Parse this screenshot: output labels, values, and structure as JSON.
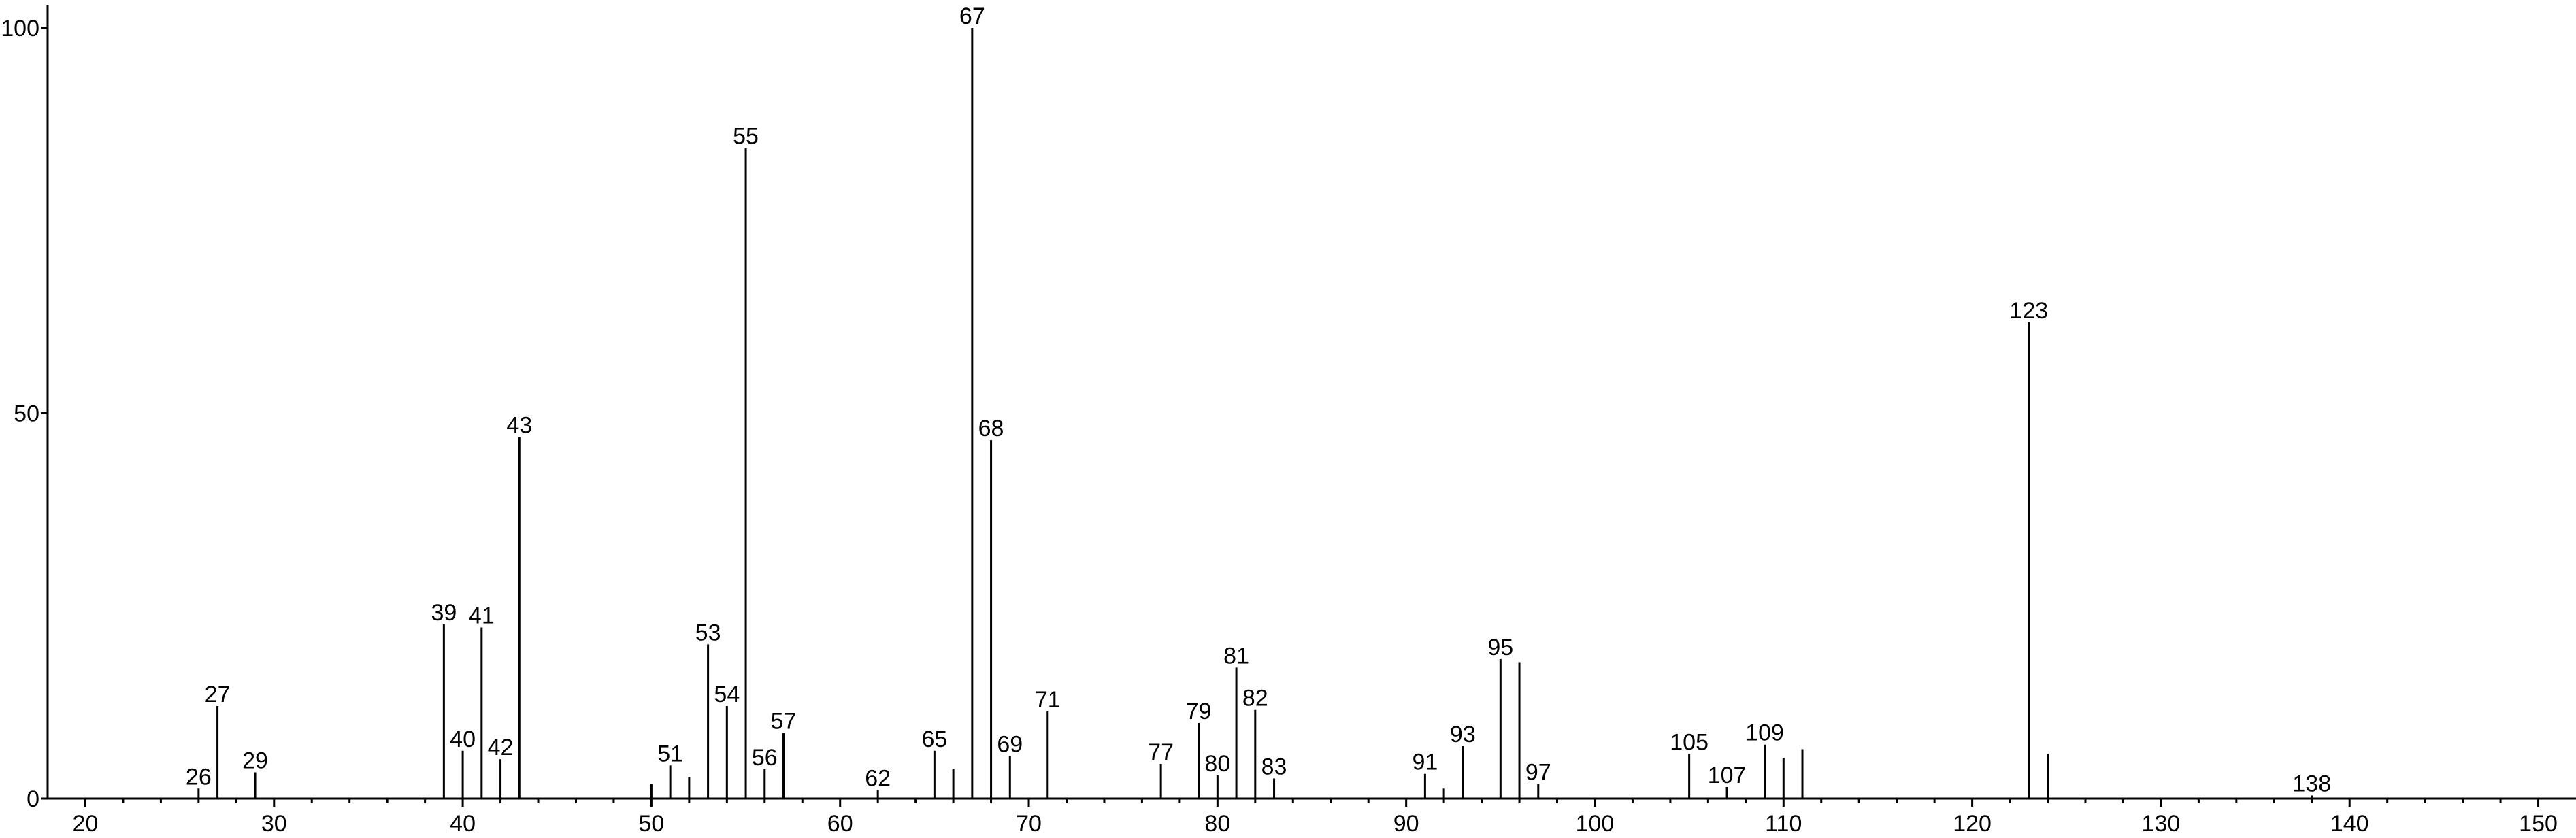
{
  "chart_data": {
    "type": "spectrum",
    "color": "#000000",
    "x": [
      26,
      27,
      29,
      39,
      40,
      41,
      42,
      43,
      50,
      51,
      52,
      53,
      54,
      55,
      56,
      57,
      62,
      65,
      66,
      67,
      68,
      69,
      71,
      77,
      79,
      80,
      81,
      82,
      83,
      91,
      92,
      93,
      95,
      96,
      97,
      105,
      107,
      109,
      110,
      111,
      123,
      124,
      138
    ],
    "values": [
      1.3,
      12,
      3.4,
      22.6,
      6.2,
      22.2,
      5.1,
      46.9,
      1.9,
      4.3,
      2.8,
      20,
      12,
      84.4,
      3.8,
      8.5,
      1.1,
      6.2,
      3.8,
      100,
      46.5,
      5.5,
      11.3,
      4.5,
      9.8,
      3,
      17,
      11.5,
      2.6,
      3.2,
      1.3,
      6.8,
      18.1,
      17.7,
      1.9,
      5.8,
      1.5,
      7,
      5.3,
      6.4,
      61.8,
      5.8,
      0.4
    ],
    "peak_labels": [
      26,
      27,
      29,
      39,
      40,
      41,
      42,
      43,
      null,
      51,
      null,
      53,
      54,
      55,
      56,
      57,
      62,
      65,
      null,
      67,
      68,
      69,
      71,
      77,
      79,
      80,
      81,
      82,
      83,
      91,
      null,
      93,
      95,
      null,
      97,
      105,
      107,
      109,
      null,
      null,
      123,
      null,
      138
    ],
    "xlim": [
      18,
      152
    ],
    "ylim": [
      0,
      103
    ],
    "xticks": [
      20,
      30,
      40,
      50,
      60,
      70,
      80,
      90,
      100,
      110,
      120,
      130,
      140,
      150
    ],
    "xminorticks": [
      22,
      24,
      26,
      28,
      32,
      34,
      36,
      38,
      42,
      44,
      46,
      48,
      52,
      54,
      56,
      58,
      62,
      64,
      66,
      68,
      72,
      74,
      76,
      78,
      82,
      84,
      86,
      88,
      92,
      94,
      96,
      98,
      102,
      104,
      106,
      108,
      112,
      114,
      116,
      118,
      122,
      124,
      126,
      128,
      132,
      134,
      136,
      138,
      142,
      144,
      146,
      148
    ],
    "yticks": [
      0,
      50,
      100
    ]
  }
}
